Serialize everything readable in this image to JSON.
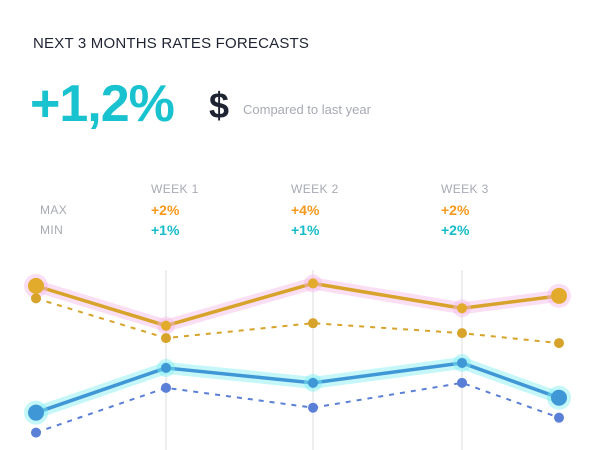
{
  "title": "NEXT 3 MONTHS RATES FORECASTS",
  "headline": {
    "value": "+1,2%",
    "currency_symbol": "$",
    "comparison": "Compared to last year"
  },
  "table": {
    "row_labels": {
      "max": "MAX",
      "min": "MIN"
    },
    "weeks": [
      {
        "label": "WEEK 1",
        "max": "+2%",
        "min": "+1%"
      },
      {
        "label": "WEEK 2",
        "max": "+4%",
        "min": "+1%"
      },
      {
        "label": "WEEK 3",
        "max": "+2%",
        "min": "+2%"
      }
    ]
  },
  "colors": {
    "headline": "#19c2cf",
    "max_value": "#f59a1e",
    "min_value": "#16bcc8",
    "gold_line": "#d7a32a",
    "gold_dot": "#e2ab2c",
    "blue_line": "#3f97d6",
    "blue_dash": "#5a7fd6",
    "glow_gold": "#f4b7e6",
    "glow_blue": "#7feef2",
    "gridline": "#dcdde2"
  },
  "chart_data": {
    "type": "line",
    "x": [
      0,
      1,
      2,
      3,
      4
    ],
    "gridlines_at": [
      1,
      2,
      3
    ],
    "series": [
      {
        "style": "gold-solid",
        "values": [
          2.0,
          1.2,
          2.05,
          1.55,
          1.8
        ]
      },
      {
        "style": "gold-dashed",
        "values": [
          1.75,
          0.95,
          1.25,
          1.05,
          0.85
        ]
      },
      {
        "style": "blue-solid",
        "values": [
          -0.55,
          0.35,
          0.05,
          0.45,
          -0.25
        ]
      },
      {
        "style": "blue-dashed",
        "values": [
          -0.95,
          -0.05,
          -0.45,
          0.05,
          -0.65
        ]
      }
    ],
    "ylim": [
      -1.2,
      2.4
    ]
  }
}
